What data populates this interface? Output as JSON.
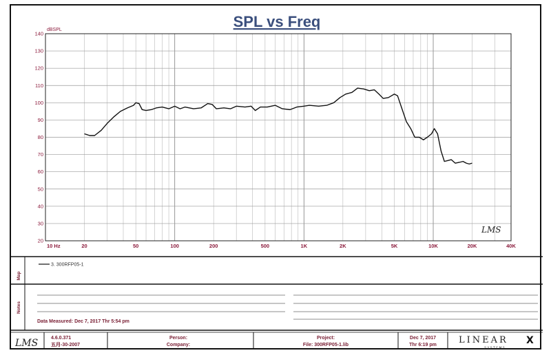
{
  "chart_data": {
    "type": "line",
    "title": "SPL vs Freq",
    "ylabel": "dBSPL",
    "xlabel": "",
    "x_scale": "log",
    "xlim": [
      10,
      40000
    ],
    "ylim": [
      20,
      140
    ],
    "y_ticks": [
      "20",
      "30",
      "40",
      "50",
      "60",
      "70",
      "80",
      "90",
      "100",
      "110",
      "120",
      "130",
      "140"
    ],
    "x_tick_labels": [
      {
        "f": 10,
        "label": "10  Hz"
      },
      {
        "f": 20,
        "label": "20"
      },
      {
        "f": 50,
        "label": "50"
      },
      {
        "f": 100,
        "label": "100"
      },
      {
        "f": 200,
        "label": "200"
      },
      {
        "f": 500,
        "label": "500"
      },
      {
        "f": 1000,
        "label": "1K"
      },
      {
        "f": 2000,
        "label": "2K"
      },
      {
        "f": 5000,
        "label": "5K"
      },
      {
        "f": 10000,
        "label": "10K"
      },
      {
        "f": 20000,
        "label": "20K"
      },
      {
        "f": 40000,
        "label": "40K"
      }
    ],
    "grid": true,
    "series": [
      {
        "name": "3. 300RFP05-1",
        "color": "#111111",
        "points": [
          [
            20,
            82
          ],
          [
            22,
            81
          ],
          [
            24,
            81
          ],
          [
            27,
            84
          ],
          [
            30,
            88
          ],
          [
            34,
            92
          ],
          [
            38,
            95
          ],
          [
            43,
            97
          ],
          [
            48,
            98.5
          ],
          [
            50,
            100
          ],
          [
            53,
            99.5
          ],
          [
            56,
            96
          ],
          [
            60,
            95.5
          ],
          [
            66,
            96
          ],
          [
            72,
            97
          ],
          [
            80,
            97.5
          ],
          [
            90,
            96.5
          ],
          [
            100,
            98
          ],
          [
            110,
            96.5
          ],
          [
            120,
            97.5
          ],
          [
            140,
            96.5
          ],
          [
            160,
            97
          ],
          [
            180,
            99.5
          ],
          [
            195,
            99
          ],
          [
            210,
            96.5
          ],
          [
            240,
            97
          ],
          [
            270,
            96.5
          ],
          [
            300,
            98
          ],
          [
            350,
            97.5
          ],
          [
            390,
            98
          ],
          [
            420,
            95.5
          ],
          [
            460,
            97.5
          ],
          [
            520,
            97.5
          ],
          [
            600,
            98.5
          ],
          [
            680,
            96.5
          ],
          [
            780,
            96
          ],
          [
            880,
            97.5
          ],
          [
            1000,
            98
          ],
          [
            1100,
            98.5
          ],
          [
            1300,
            98
          ],
          [
            1500,
            98.5
          ],
          [
            1700,
            100
          ],
          [
            1900,
            103
          ],
          [
            2100,
            105
          ],
          [
            2350,
            106
          ],
          [
            2600,
            108.5
          ],
          [
            2900,
            108
          ],
          [
            3200,
            107
          ],
          [
            3500,
            107.5
          ],
          [
            3800,
            105
          ],
          [
            4100,
            102.5
          ],
          [
            4500,
            103
          ],
          [
            5000,
            105
          ],
          [
            5300,
            104
          ],
          [
            5700,
            97
          ],
          [
            6200,
            89
          ],
          [
            6700,
            85
          ],
          [
            7200,
            80
          ],
          [
            7800,
            80
          ],
          [
            8400,
            78.5
          ],
          [
            9000,
            80
          ],
          [
            9700,
            82
          ],
          [
            10200,
            85
          ],
          [
            10800,
            82
          ],
          [
            11500,
            72
          ],
          [
            12200,
            66
          ],
          [
            13000,
            66.5
          ],
          [
            13800,
            67
          ],
          [
            14800,
            65
          ],
          [
            16000,
            65.5
          ],
          [
            17000,
            66
          ],
          [
            18000,
            65
          ],
          [
            19000,
            64.5
          ],
          [
            20000,
            65
          ]
        ]
      }
    ]
  },
  "legend": {
    "entry": "3. 300RFP05-1",
    "side_label": "Map"
  },
  "notes": {
    "side_label": "Notes",
    "data_measured": "Data Measured: Dec  7, 2017  Thr  5:54 pm"
  },
  "watermark": "LMS",
  "footer": {
    "logo": "LMS",
    "version": "4.6.0.371",
    "version_date": "五月-30-2007",
    "person": "Person:",
    "company": "Company:",
    "project": "Project:",
    "file": "File: 300RFP05-1.lib",
    "date": "Dec  7, 2017",
    "time": "Thr  6:19 pm",
    "brand": "LINEAR",
    "brand_x": "X",
    "brand_sub": "S Y S T E M S"
  }
}
